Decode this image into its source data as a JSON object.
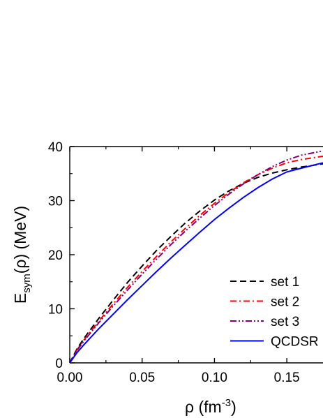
{
  "chart_data": {
    "type": "line",
    "xlabel": {
      "symbol": "ρ",
      "unit": "fm",
      "exponent": "-3"
    },
    "ylabel": {
      "main": "E",
      "sub": "sym",
      "rest": "(ρ) (MeV)"
    },
    "xlim": [
      0.0,
      0.175
    ],
    "ylim": [
      0,
      40
    ],
    "xticks": [
      {
        "value": 0.0,
        "label": "0.00"
      },
      {
        "value": 0.05,
        "label": "0.05"
      },
      {
        "value": 0.1,
        "label": "0.10"
      },
      {
        "value": 0.15,
        "label": "0.15"
      }
    ],
    "yticks": [
      {
        "value": 0,
        "label": "0"
      },
      {
        "value": 10,
        "label": "10"
      },
      {
        "value": 20,
        "label": "20"
      },
      {
        "value": 30,
        "label": "30"
      },
      {
        "value": 40,
        "label": "40"
      }
    ],
    "grid": false,
    "legend_position": "bottom-right",
    "series": [
      {
        "name": "set 1",
        "color": "#000000",
        "dash": "dash",
        "x": [
          0.0,
          0.005,
          0.01,
          0.02,
          0.03,
          0.04,
          0.05,
          0.06,
          0.07,
          0.08,
          0.09,
          0.1,
          0.11,
          0.12,
          0.13,
          0.14,
          0.15,
          0.16,
          0.175
        ],
        "y": [
          0.0,
          2.6,
          4.6,
          8.2,
          11.6,
          14.9,
          17.9,
          20.8,
          23.4,
          25.9,
          28.1,
          30.1,
          31.8,
          33.2,
          34.3,
          35.1,
          35.7,
          36.2,
          36.8
        ]
      },
      {
        "name": "set 2",
        "color": "#ff0000",
        "dash": "dashdot",
        "x": [
          0.0,
          0.005,
          0.01,
          0.02,
          0.03,
          0.04,
          0.05,
          0.06,
          0.07,
          0.08,
          0.09,
          0.1,
          0.11,
          0.12,
          0.13,
          0.14,
          0.15,
          0.16,
          0.175
        ],
        "y": [
          0.0,
          2.4,
          4.3,
          7.7,
          10.9,
          14.0,
          16.9,
          19.7,
          22.4,
          24.9,
          27.3,
          29.5,
          31.5,
          33.3,
          34.8,
          36.0,
          37.0,
          37.6,
          38.2
        ]
      },
      {
        "name": "set 3",
        "color": "#800080",
        "dash": "dashdotdot",
        "x": [
          0.0,
          0.005,
          0.01,
          0.02,
          0.03,
          0.04,
          0.05,
          0.06,
          0.07,
          0.08,
          0.09,
          0.1,
          0.11,
          0.12,
          0.13,
          0.14,
          0.15,
          0.16,
          0.175
        ],
        "y": [
          0.0,
          2.3,
          4.1,
          7.4,
          10.5,
          13.5,
          16.4,
          19.2,
          21.9,
          24.4,
          26.8,
          29.1,
          31.2,
          33.1,
          34.8,
          36.3,
          37.5,
          38.4,
          39.2
        ]
      },
      {
        "name": "QCDSR",
        "color": "#0000ff",
        "dash": "solid",
        "x": [
          0.0,
          0.005,
          0.01,
          0.02,
          0.03,
          0.04,
          0.05,
          0.06,
          0.07,
          0.08,
          0.09,
          0.1,
          0.11,
          0.12,
          0.13,
          0.14,
          0.15,
          0.16,
          0.175
        ],
        "y": [
          0.0,
          1.9,
          3.4,
          6.3,
          9.0,
          11.7,
          14.3,
          16.9,
          19.4,
          21.8,
          24.2,
          26.5,
          28.6,
          30.6,
          32.4,
          34.0,
          35.3,
          36.0,
          37.0
        ]
      }
    ]
  }
}
